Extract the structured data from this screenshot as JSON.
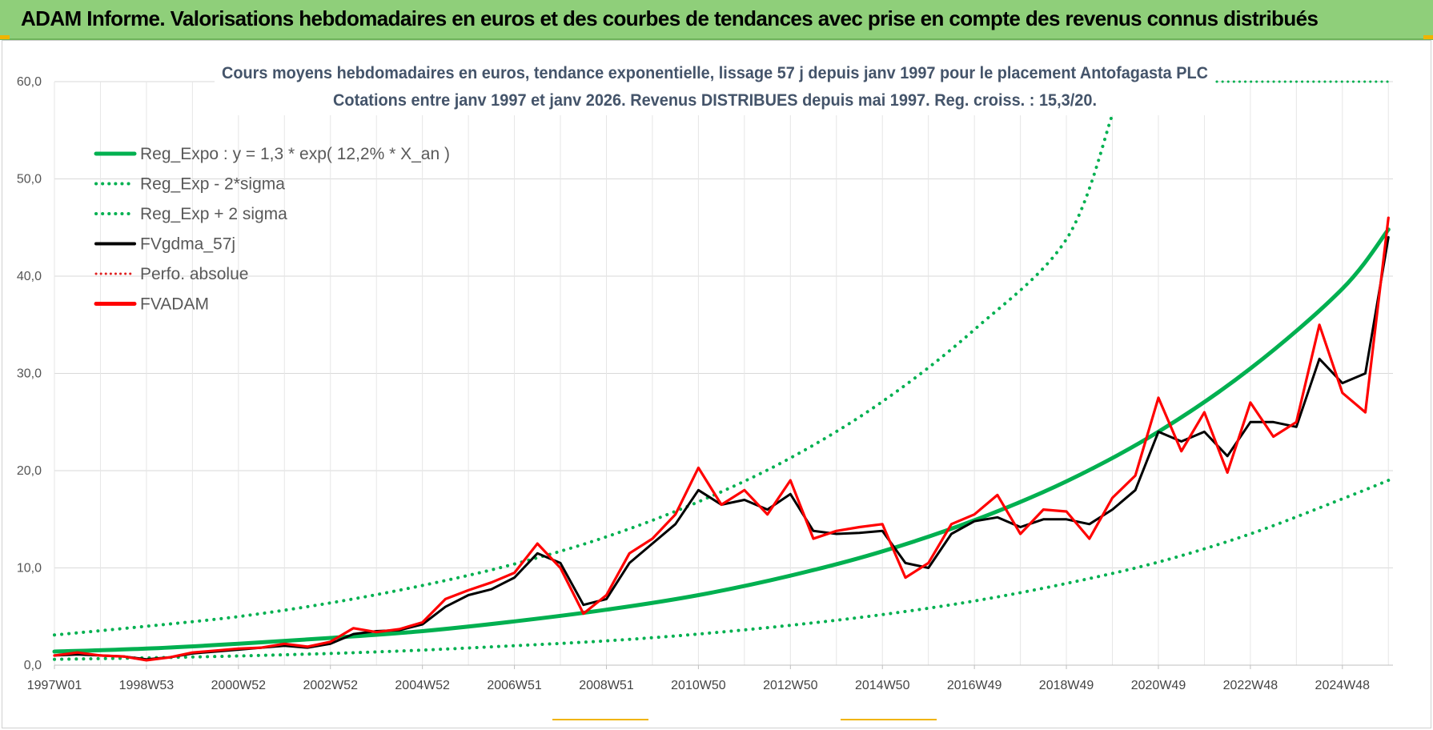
{
  "banner": {
    "title": "ADAM Informe. Valorisations hebdomadaires en euros et des courbes de tendances avec prise en compte des revenus connus distribués"
  },
  "colors": {
    "banner": "#8fcf7a",
    "trend": "#00b050",
    "smoothed": "#000000",
    "fvadam": "#ff0000",
    "perfo": "#e02020"
  },
  "chart_data": {
    "type": "line",
    "title_lines": [
      "Cours moyens hebdomadaires en euros, tendance exponentielle, lissage 57 j depuis janv 1997 pour le placement Antofagasta PLC",
      "Cotations entre janv 1997 et janv 2026. Revenus DISTRIBUES depuis mai 1997.  Reg. croiss. : 15,3/20."
    ],
    "xlabel": "",
    "ylabel": "",
    "ylim": [
      0,
      60
    ],
    "xlim": [
      1997.0,
      2026.1
    ],
    "y_ticks": [
      "0,0",
      "10,0",
      "20,0",
      "30,0",
      "40,0",
      "50,0",
      "60,0"
    ],
    "x_ticks": [
      {
        "label": "1997W01",
        "x": 1997.0
      },
      {
        "label": "1998W53",
        "x": 1999.0
      },
      {
        "label": "2000W52",
        "x": 2001.0
      },
      {
        "label": "2002W52",
        "x": 2003.0
      },
      {
        "label": "2004W52",
        "x": 2005.0
      },
      {
        "label": "2006W51",
        "x": 2007.0
      },
      {
        "label": "2008W51",
        "x": 2009.0
      },
      {
        "label": "2010W50",
        "x": 2011.0
      },
      {
        "label": "2012W50",
        "x": 2013.0
      },
      {
        "label": "2014W50",
        "x": 2015.0
      },
      {
        "label": "2016W49",
        "x": 2017.0
      },
      {
        "label": "2018W49",
        "x": 2019.0
      },
      {
        "label": "2020W49",
        "x": 2021.0
      },
      {
        "label": "2022W48",
        "x": 2023.0
      },
      {
        "label": "2024W48",
        "x": 2025.0
      }
    ],
    "legend": {
      "position": "top-left",
      "entries": [
        {
          "label": "Reg_Expo : y = 1,3 * exp( 12,2% *  X_an )",
          "style": "solid-green"
        },
        {
          "label": "Reg_Exp - 2*sigma",
          "style": "dotted-green"
        },
        {
          "label": "Reg_Exp + 2 sigma",
          "style": "dotted-green"
        },
        {
          "label": "FVgdma_57j",
          "style": "solid-black"
        },
        {
          "label": "Perfo. absolue",
          "style": "dotted-red"
        },
        {
          "label": "FVADAM",
          "style": "solid-red"
        }
      ]
    },
    "series": [
      {
        "name": "Reg_Expo : y = 1,3 * exp( 12,2% *  X_an )",
        "x": [
          1997.0,
          1999.0,
          2001.0,
          2003.0,
          2005.0,
          2007.0,
          2009.0,
          2011.0,
          2013.0,
          2015.0,
          2017.0,
          2019.0,
          2021.0,
          2023.0,
          2025.0,
          2026.0
        ],
        "y": [
          1.4,
          1.7,
          2.2,
          2.8,
          3.5,
          4.5,
          5.7,
          7.2,
          9.2,
          11.7,
          14.9,
          18.9,
          24.0,
          30.5,
          38.7,
          44.8
        ]
      },
      {
        "name": "Reg_Exp - 2*sigma",
        "x": [
          1997.0,
          1999.0,
          2001.0,
          2003.0,
          2005.0,
          2007.0,
          2009.0,
          2011.0,
          2013.0,
          2015.0,
          2017.0,
          2019.0,
          2021.0,
          2023.0,
          2025.0,
          2026.0
        ],
        "y": [
          0.6,
          0.75,
          0.95,
          1.2,
          1.55,
          2.0,
          2.5,
          3.2,
          4.1,
          5.2,
          6.6,
          8.4,
          10.6,
          13.5,
          17.1,
          19.0
        ]
      },
      {
        "name": "Reg_Exp + 2 sigma",
        "x": [
          1997.0,
          1999.0,
          2001.0,
          2003.0,
          2005.0,
          2007.0,
          2009.0,
          2011.0,
          2013.0,
          2015.0,
          2017.0,
          2019.0,
          2020.0
        ],
        "y": [
          3.1,
          4.0,
          5.0,
          6.4,
          8.2,
          10.4,
          13.2,
          16.8,
          21.3,
          27.1,
          34.5,
          43.8,
          56.6
        ]
      },
      {
        "name": "FVgdma_57j",
        "x": [
          1997.0,
          1997.5,
          1998.0,
          1998.5,
          1999.0,
          1999.5,
          2000.0,
          2000.5,
          2001.0,
          2001.5,
          2002.0,
          2002.5,
          2003.0,
          2003.5,
          2004.0,
          2004.5,
          2005.0,
          2005.5,
          2006.0,
          2006.5,
          2007.0,
          2007.5,
          2008.0,
          2008.5,
          2009.0,
          2009.5,
          2010.0,
          2010.5,
          2011.0,
          2011.5,
          2012.0,
          2012.5,
          2013.0,
          2013.5,
          2014.0,
          2014.5,
          2015.0,
          2015.5,
          2016.0,
          2016.5,
          2017.0,
          2017.5,
          2018.0,
          2018.5,
          2019.0,
          2019.5,
          2020.0,
          2020.5,
          2021.0,
          2021.5,
          2022.0,
          2022.5,
          2023.0,
          2023.5,
          2024.0,
          2024.5,
          2025.0,
          2025.5,
          2026.0
        ],
        "y": [
          1.0,
          1.1,
          1.0,
          0.9,
          0.6,
          0.8,
          1.2,
          1.4,
          1.6,
          1.8,
          2.0,
          1.8,
          2.2,
          3.2,
          3.5,
          3.6,
          4.2,
          6.0,
          7.2,
          7.8,
          9.0,
          11.5,
          10.5,
          6.2,
          6.8,
          10.5,
          12.5,
          14.5,
          18.0,
          16.5,
          17.0,
          16.0,
          17.6,
          13.8,
          13.5,
          13.6,
          13.8,
          10.5,
          10.0,
          13.5,
          14.8,
          15.2,
          14.2,
          15.0,
          15.0,
          14.5,
          16.0,
          18.0,
          24.0,
          23.0,
          24.0,
          21.5,
          25.0,
          25.0,
          24.5,
          31.5,
          29.0,
          30.0,
          44.0
        ]
      },
      {
        "name": "FVADAM",
        "x": [
          1997.0,
          1997.5,
          1998.0,
          1998.5,
          1999.0,
          1999.5,
          2000.0,
          2000.5,
          2001.0,
          2001.5,
          2002.0,
          2002.5,
          2003.0,
          2003.5,
          2004.0,
          2004.5,
          2005.0,
          2005.5,
          2006.0,
          2006.5,
          2007.0,
          2007.5,
          2008.0,
          2008.5,
          2009.0,
          2009.5,
          2010.0,
          2010.5,
          2011.0,
          2011.5,
          2012.0,
          2012.5,
          2013.0,
          2013.5,
          2014.0,
          2014.5,
          2015.0,
          2015.5,
          2016.0,
          2016.5,
          2017.0,
          2017.5,
          2018.0,
          2018.5,
          2019.0,
          2019.5,
          2020.0,
          2020.5,
          2021.0,
          2021.5,
          2022.0,
          2022.5,
          2023.0,
          2023.5,
          2024.0,
          2024.5,
          2025.0,
          2025.5,
          2026.0
        ],
        "y": [
          1.0,
          1.3,
          1.0,
          0.9,
          0.5,
          0.8,
          1.3,
          1.5,
          1.7,
          1.8,
          2.2,
          1.9,
          2.4,
          3.8,
          3.4,
          3.7,
          4.4,
          6.8,
          7.7,
          8.5,
          9.5,
          12.5,
          10.0,
          5.3,
          7.2,
          11.5,
          13.0,
          15.5,
          20.3,
          16.5,
          18.0,
          15.5,
          19.0,
          13.0,
          13.8,
          14.2,
          14.5,
          9.0,
          10.5,
          14.5,
          15.5,
          17.5,
          13.5,
          16.0,
          15.8,
          13.0,
          17.2,
          19.5,
          27.5,
          22.0,
          26.0,
          19.8,
          27.0,
          23.5,
          25.0,
          35.0,
          28.0,
          26.0,
          46.0
        ]
      }
    ]
  }
}
